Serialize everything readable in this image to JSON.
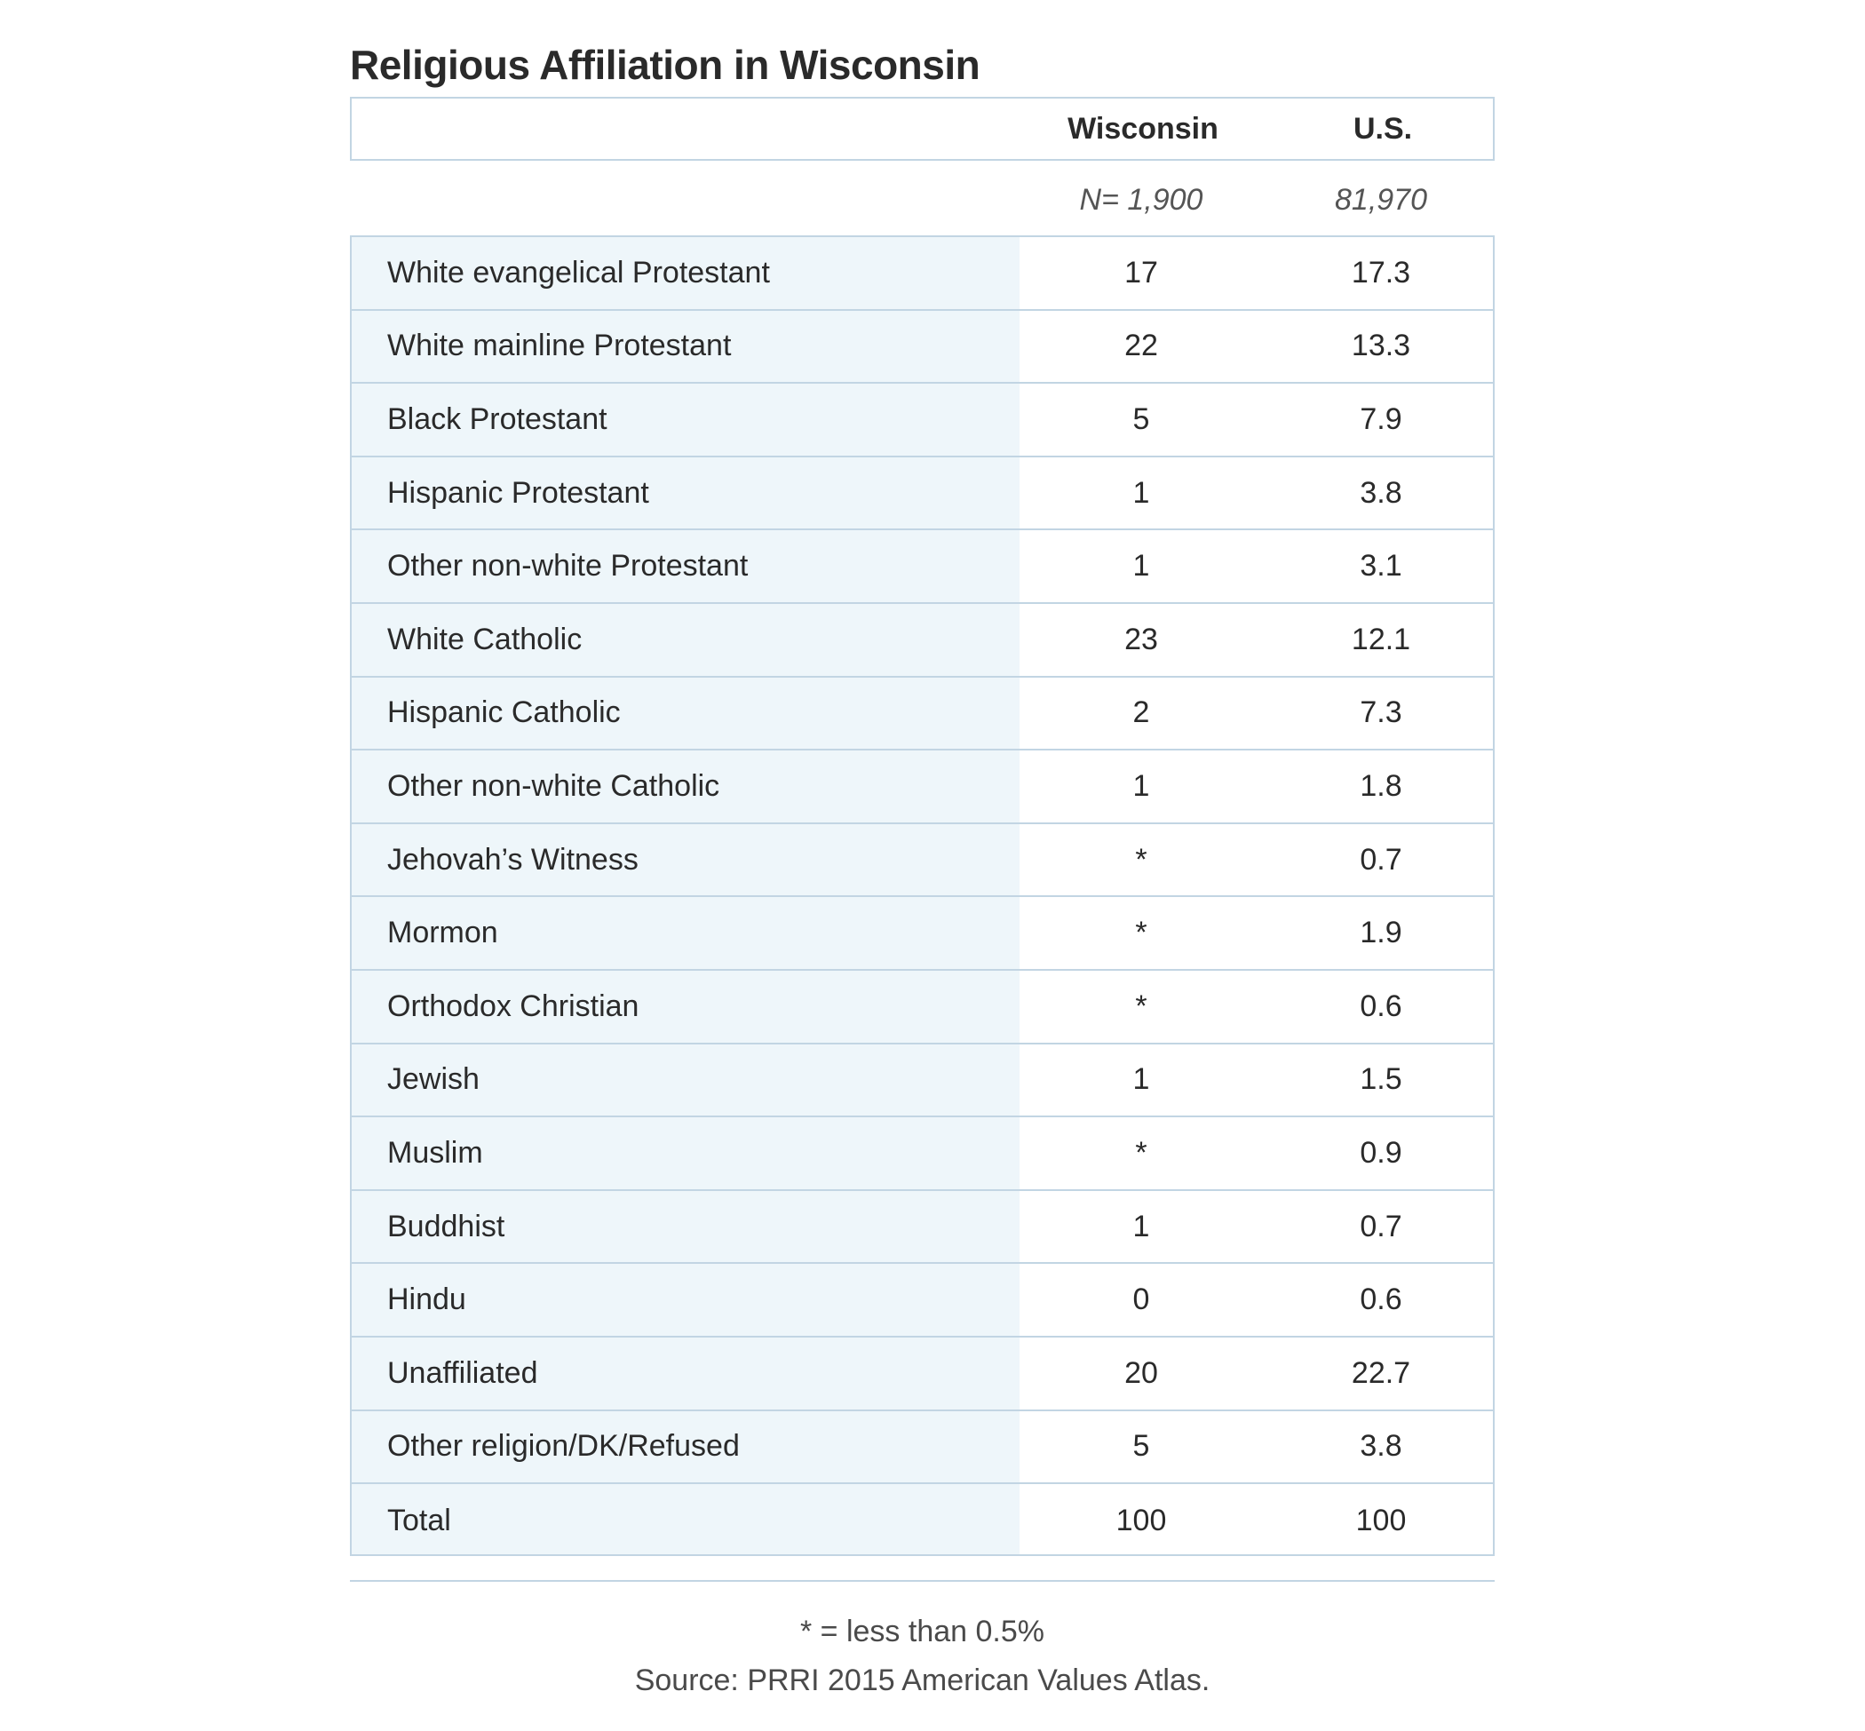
{
  "chart_data": {
    "type": "table",
    "title": "Religious Affiliation in Wisconsin",
    "columns": [
      "Wisconsin",
      "U.S."
    ],
    "sample_sizes": [
      "N= 1,900",
      "81,970"
    ],
    "rows": [
      {
        "label": "White evangelical Protestant",
        "wisconsin": "17",
        "us": "17.3"
      },
      {
        "label": "White mainline Protestant",
        "wisconsin": "22",
        "us": "13.3"
      },
      {
        "label": "Black Protestant",
        "wisconsin": "5",
        "us": "7.9"
      },
      {
        "label": "Hispanic Protestant",
        "wisconsin": "1",
        "us": "3.8"
      },
      {
        "label": "Other non-white Protestant",
        "wisconsin": "1",
        "us": "3.1"
      },
      {
        "label": "White Catholic",
        "wisconsin": "23",
        "us": "12.1"
      },
      {
        "label": "Hispanic Catholic",
        "wisconsin": "2",
        "us": "7.3"
      },
      {
        "label": "Other non-white Catholic",
        "wisconsin": "1",
        "us": "1.8"
      },
      {
        "label": "Jehovah’s Witness",
        "wisconsin": "*",
        "us": "0.7"
      },
      {
        "label": "Mormon",
        "wisconsin": "*",
        "us": "1.9"
      },
      {
        "label": "Orthodox Christian",
        "wisconsin": "*",
        "us": "0.6"
      },
      {
        "label": "Jewish",
        "wisconsin": "1",
        "us": "1.5"
      },
      {
        "label": "Muslim",
        "wisconsin": "*",
        "us": "0.9"
      },
      {
        "label": "Buddhist",
        "wisconsin": "1",
        "us": "0.7"
      },
      {
        "label": "Hindu",
        "wisconsin": "0",
        "us": "0.6"
      },
      {
        "label": "Unaffiliated",
        "wisconsin": "20",
        "us": "22.7"
      },
      {
        "label": "Other religion/DK/Refused",
        "wisconsin": "5",
        "us": "3.8"
      },
      {
        "label": "Total",
        "wisconsin": "100",
        "us": "100"
      }
    ],
    "footnote": "* = less than 0.5%",
    "source": "Source: PRRI 2015 American Values Atlas."
  },
  "colors": {
    "border": "#c2d5e3",
    "label_column_shade": "#eef6fa",
    "text": "#2a2a2a"
  }
}
